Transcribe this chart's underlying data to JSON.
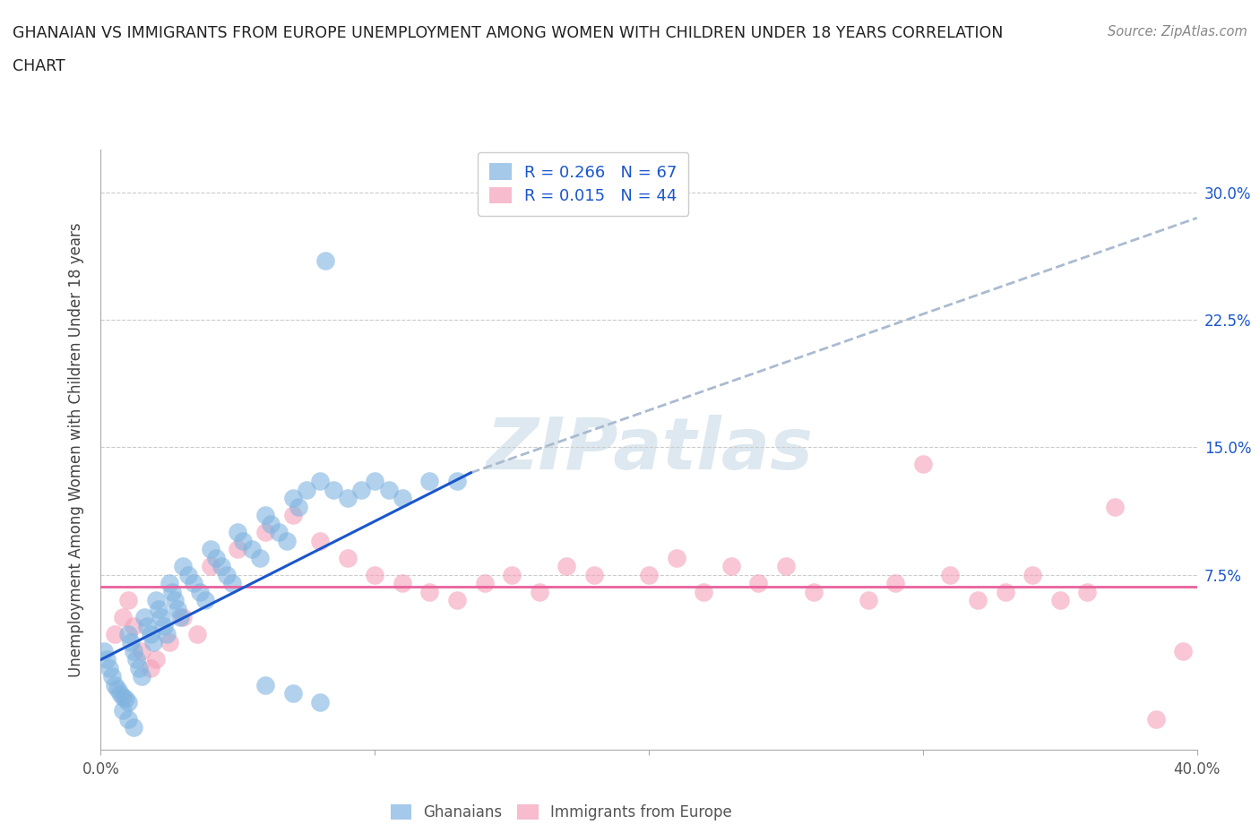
{
  "title_line1": "GHANAIAN VS IMMIGRANTS FROM EUROPE UNEMPLOYMENT AMONG WOMEN WITH CHILDREN UNDER 18 YEARS CORRELATION",
  "title_line2": "CHART",
  "source": "Source: ZipAtlas.com",
  "ylabel": "Unemployment Among Women with Children Under 18 years",
  "xlim": [
    0.0,
    0.4
  ],
  "ylim_min": -0.028,
  "ylim_max": 0.325,
  "ghanaian_R": 0.266,
  "ghanaian_N": 67,
  "europe_R": 0.015,
  "europe_N": 44,
  "ghanaian_color": "#7fb3e0",
  "europe_color": "#f4a0b8",
  "trendline_ghanaian_color": "#1a56cc",
  "trendline_europe_color": "#e8609a",
  "trendline_dash_color": "#aabbd0",
  "background_color": "#ffffff",
  "watermark_color": "#dde8f0",
  "ghanaian_x": [
    0.001,
    0.002,
    0.003,
    0.004,
    0.005,
    0.006,
    0.007,
    0.008,
    0.009,
    0.01,
    0.01,
    0.011,
    0.012,
    0.013,
    0.014,
    0.015,
    0.016,
    0.017,
    0.018,
    0.019,
    0.02,
    0.021,
    0.022,
    0.023,
    0.024,
    0.025,
    0.026,
    0.027,
    0.028,
    0.029,
    0.03,
    0.032,
    0.034,
    0.036,
    0.038,
    0.04,
    0.042,
    0.044,
    0.046,
    0.048,
    0.05,
    0.052,
    0.055,
    0.058,
    0.06,
    0.062,
    0.065,
    0.068,
    0.07,
    0.072,
    0.075,
    0.08,
    0.085,
    0.09,
    0.095,
    0.1,
    0.105,
    0.11,
    0.12,
    0.13,
    0.008,
    0.01,
    0.012,
    0.06,
    0.07,
    0.08,
    0.082
  ],
  "ghanaian_y": [
    0.03,
    0.025,
    0.02,
    0.015,
    0.01,
    0.008,
    0.005,
    0.003,
    0.002,
    0.0,
    0.04,
    0.035,
    0.03,
    0.025,
    0.02,
    0.015,
    0.05,
    0.045,
    0.04,
    0.035,
    0.06,
    0.055,
    0.05,
    0.045,
    0.04,
    0.07,
    0.065,
    0.06,
    0.055,
    0.05,
    0.08,
    0.075,
    0.07,
    0.065,
    0.06,
    0.09,
    0.085,
    0.08,
    0.075,
    0.07,
    0.1,
    0.095,
    0.09,
    0.085,
    0.11,
    0.105,
    0.1,
    0.095,
    0.12,
    0.115,
    0.125,
    0.13,
    0.125,
    0.12,
    0.125,
    0.13,
    0.125,
    0.12,
    0.13,
    0.13,
    -0.005,
    -0.01,
    -0.015,
    0.01,
    0.005,
    0.0,
    0.26
  ],
  "europe_x": [
    0.005,
    0.008,
    0.01,
    0.012,
    0.015,
    0.018,
    0.02,
    0.025,
    0.03,
    0.035,
    0.04,
    0.05,
    0.06,
    0.07,
    0.08,
    0.09,
    0.1,
    0.11,
    0.12,
    0.13,
    0.14,
    0.15,
    0.16,
    0.17,
    0.18,
    0.2,
    0.21,
    0.22,
    0.23,
    0.24,
    0.25,
    0.26,
    0.28,
    0.29,
    0.3,
    0.31,
    0.32,
    0.33,
    0.34,
    0.35,
    0.36,
    0.37,
    0.385,
    0.395
  ],
  "europe_y": [
    0.04,
    0.05,
    0.06,
    0.045,
    0.03,
    0.02,
    0.025,
    0.035,
    0.05,
    0.04,
    0.08,
    0.09,
    0.1,
    0.11,
    0.095,
    0.085,
    0.075,
    0.07,
    0.065,
    0.06,
    0.07,
    0.075,
    0.065,
    0.08,
    0.075,
    0.075,
    0.085,
    0.065,
    0.08,
    0.07,
    0.08,
    0.065,
    0.06,
    0.07,
    0.14,
    0.075,
    0.06,
    0.065,
    0.075,
    0.06,
    0.065,
    0.115,
    -0.01,
    0.03
  ],
  "trendline_g_x0": 0.0,
  "trendline_g_y0": 0.025,
  "trendline_g_x1": 0.135,
  "trendline_g_y1": 0.135,
  "trendline_dash_x0": 0.135,
  "trendline_dash_y0": 0.135,
  "trendline_dash_x1": 0.4,
  "trendline_dash_y1": 0.285,
  "trendline_e_y": 0.068
}
